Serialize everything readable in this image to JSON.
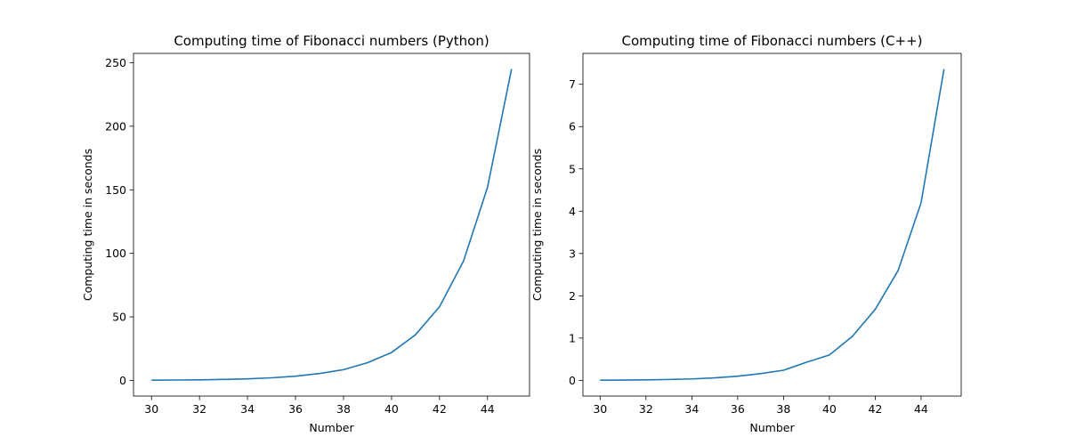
{
  "chart_data": [
    {
      "type": "line",
      "title": "Computing time of Fibonacci numbers (Python)",
      "xlabel": "Number",
      "ylabel": "Computing time in seconds",
      "xlim": [
        29.25,
        45.75
      ],
      "ylim": [
        -12.25,
        257.3
      ],
      "xticks": [
        30,
        32,
        34,
        36,
        38,
        40,
        42,
        44
      ],
      "yticks": [
        0,
        50,
        100,
        150,
        200,
        250
      ],
      "series": [
        {
          "color": "#1f77b4",
          "x": [
            30,
            31,
            32,
            33,
            34,
            35,
            36,
            37,
            38,
            39,
            40,
            41,
            42,
            43,
            44,
            45
          ],
          "y": [
            0.2,
            0.35,
            0.5,
            0.8,
            1.3,
            2.1,
            3.4,
            5.5,
            8.5,
            14,
            22,
            36,
            58,
            94,
            152,
            245
          ]
        }
      ]
    },
    {
      "type": "line",
      "title": "Computing time of Fibonacci numbers (C++)",
      "xlabel": "Number",
      "ylabel": "Computing time in seconds",
      "xlim": [
        29.25,
        45.75
      ],
      "ylim": [
        -0.37,
        7.73
      ],
      "xticks": [
        30,
        32,
        34,
        36,
        38,
        40,
        42,
        44
      ],
      "yticks": [
        0,
        1,
        2,
        3,
        4,
        5,
        6,
        7
      ],
      "series": [
        {
          "color": "#1f77b4",
          "x": [
            30,
            31,
            32,
            33,
            34,
            35,
            36,
            37,
            38,
            39,
            40,
            41,
            42,
            43,
            44,
            45
          ],
          "y": [
            0.005,
            0.008,
            0.013,
            0.022,
            0.035,
            0.06,
            0.1,
            0.16,
            0.24,
            0.43,
            0.6,
            1.04,
            1.68,
            2.6,
            4.2,
            7.36
          ]
        }
      ]
    }
  ]
}
